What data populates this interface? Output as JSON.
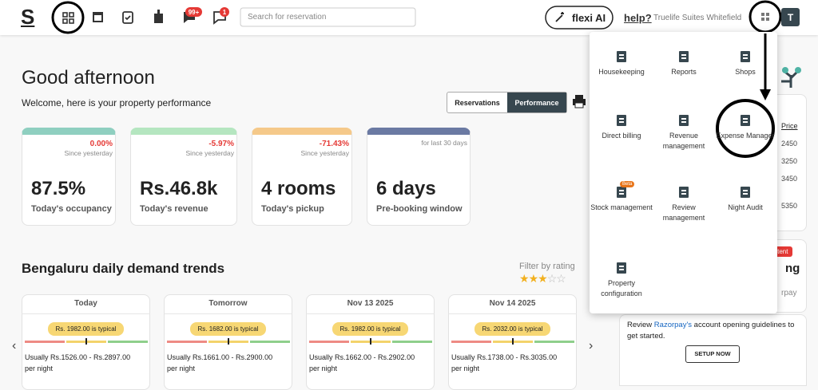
{
  "header": {
    "logo": "S",
    "chat_badge": "99+",
    "message_badge": "1",
    "search_placeholder": "Search for reservation",
    "flexi_button": "flexi AI",
    "help_link": "help?",
    "property_name": "Truelife Suites Whitefield",
    "avatar": "T"
  },
  "greeting": {
    "title": "Good afternoon",
    "subtitle": "Welcome, here is your property performance",
    "tabs": [
      "Reservations",
      "Performance"
    ]
  },
  "stats": [
    {
      "change": "0.00%",
      "period": "Since yesterday",
      "value": "87.5%",
      "label": "Today's occupancy"
    },
    {
      "change": "-5.97%",
      "period": "Since yesterday",
      "value": "Rs.46.8k",
      "label": "Today's revenue"
    },
    {
      "change": "-71.43%",
      "period": "Since yesterday",
      "value": "4 rooms",
      "label": "Today's pickup"
    },
    {
      "period": "for last 30 days",
      "value": "6 days",
      "label": "Pre-booking window"
    }
  ],
  "demand": {
    "title": "Bengaluru daily demand trends",
    "filter_label": "Filter by rating",
    "rating": 3,
    "rating_max": 5,
    "days": [
      {
        "date": "Today",
        "typical": "Rs. 1982.00 is typical",
        "range": "Usually Rs.1526.00 - Rs.2897.00 per night"
      },
      {
        "date": "Tomorrow",
        "typical": "Rs. 1682.00 is typical",
        "range": "Usually Rs.1661.00 - Rs.2900.00 per night"
      },
      {
        "date": "Nov 13 2025",
        "typical": "Rs. 1982.00 is typical",
        "range": "Usually Rs.1662.00 - Rs.2902.00 per night"
      },
      {
        "date": "Nov 14 2025",
        "typical": "Rs. 2032.00 is typical",
        "range": "Usually Rs.1738.00 - Rs.3035.00 per night"
      }
    ]
  },
  "side_panel": {
    "price_header": "Price",
    "prices": [
      "2450",
      "3250",
      "3450",
      "5350"
    ],
    "badge": "artent",
    "heading": "ng",
    "brand": "rpay",
    "notice_prefix": "Review",
    "notice_link": "Razorpay's",
    "notice_suffix": "account opening guidelines to get started.",
    "button": "SETUP NOW"
  },
  "menu": {
    "items": [
      {
        "label": "Housekeeping"
      },
      {
        "label": "Reports"
      },
      {
        "label": "Shops"
      },
      {
        "label": "Direct billing"
      },
      {
        "label": "Revenue management"
      },
      {
        "label": "Expense Manager"
      },
      {
        "label": "Stock management",
        "badge": "Beta"
      },
      {
        "label": "Review management"
      },
      {
        "label": "Night Audit"
      },
      {
        "label": "Property configuration"
      }
    ]
  }
}
